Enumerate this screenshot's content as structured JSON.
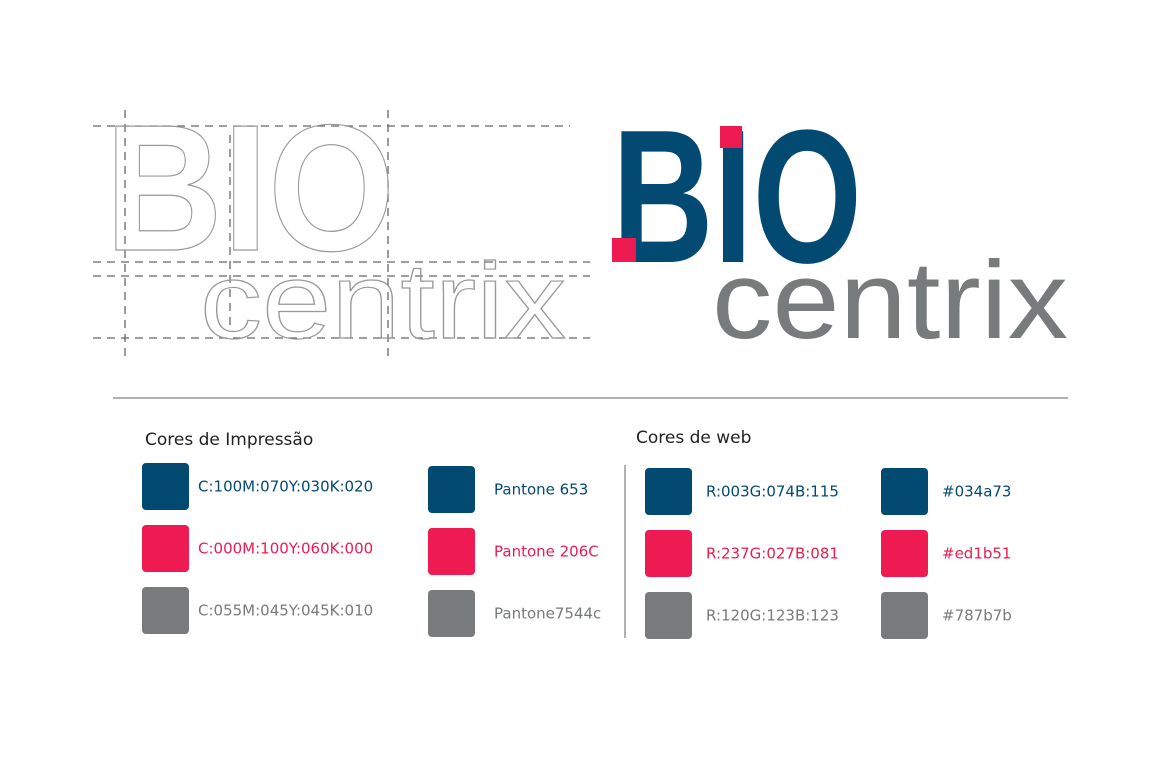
{
  "logo": {
    "top": "BIO",
    "bottom": "centrix"
  },
  "print": {
    "title": "Cores de Impressão",
    "cmyk": [
      {
        "label": "C:100M:070Y:030K:020",
        "color": "#034a73"
      },
      {
        "label": "C:000M:100Y:060K:000",
        "color": "#ed1b51"
      },
      {
        "label": "C:055M:045Y:045K:010",
        "color": "#787b7b"
      }
    ],
    "pantone": [
      {
        "label": "Pantone 653",
        "color": "#034a73"
      },
      {
        "label": "Pantone 206C",
        "color": "#ed1b51"
      },
      {
        "label": "Pantone7544c",
        "color": "#787b7b"
      }
    ]
  },
  "web": {
    "title": "Cores de web",
    "rgb": [
      {
        "label": "R:003G:074B:115",
        "color": "#034a73"
      },
      {
        "label": "R:237G:027B:081",
        "color": "#ed1b51"
      },
      {
        "label": "R:120G:123B:123",
        "color": "#787b7b"
      }
    ],
    "hex": [
      {
        "label": "#034a73",
        "color": "#034a73"
      },
      {
        "label": "#ed1b51",
        "color": "#ed1b51"
      },
      {
        "label": "#787b7b",
        "color": "#787b7b"
      }
    ]
  }
}
